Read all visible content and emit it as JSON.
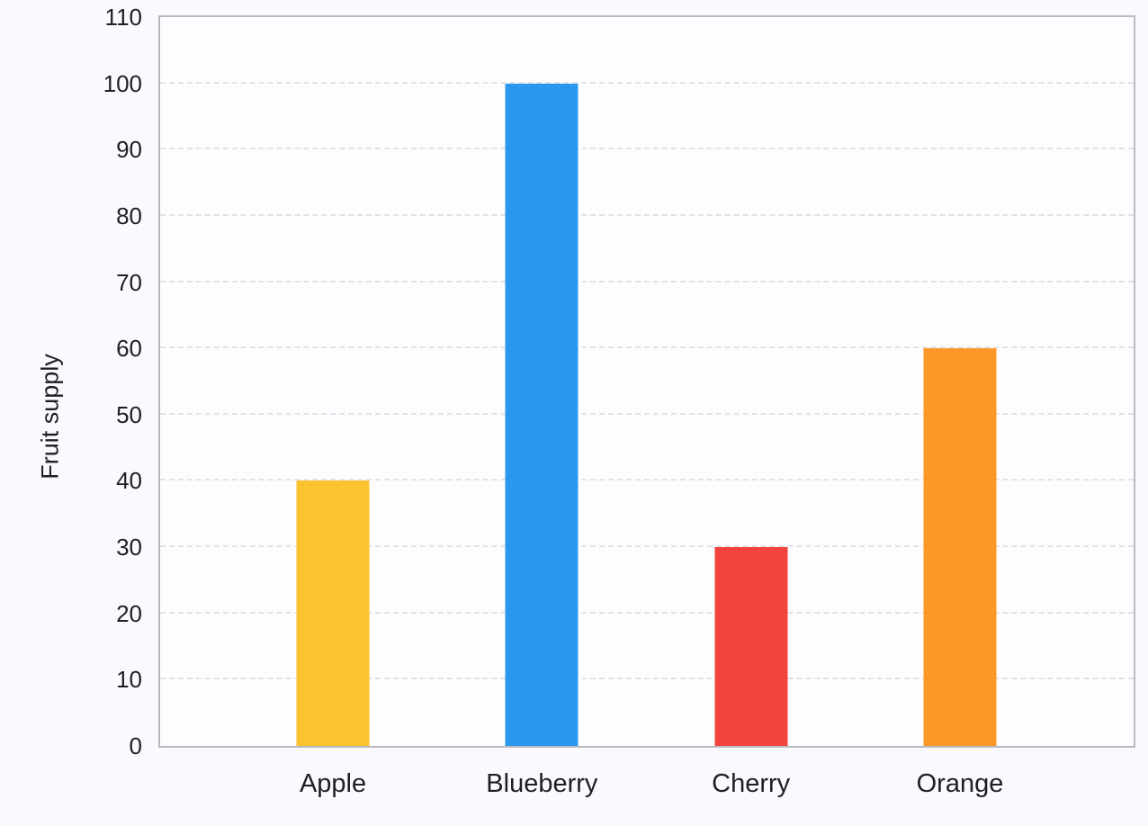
{
  "chart_data": {
    "type": "bar",
    "categories": [
      "Apple",
      "Blueberry",
      "Cherry",
      "Orange"
    ],
    "values": [
      40,
      100,
      30,
      60
    ],
    "bar_colors": [
      "#FCC32E",
      "#2B98EE",
      "#F2443E",
      "#FB9827"
    ],
    "title": "",
    "xlabel": "",
    "ylabel": "Fruit supply",
    "ylim": [
      0,
      110
    ],
    "ytick_step": 10,
    "grid": "horizontal-dashed",
    "legend_position": "none"
  },
  "colors": {
    "background": "#FAFAFE",
    "plot_background": "#FDFDFF",
    "axis_border": "#B9B9C0",
    "gridline": "#E3E3E7",
    "text": "#1E1E26"
  }
}
